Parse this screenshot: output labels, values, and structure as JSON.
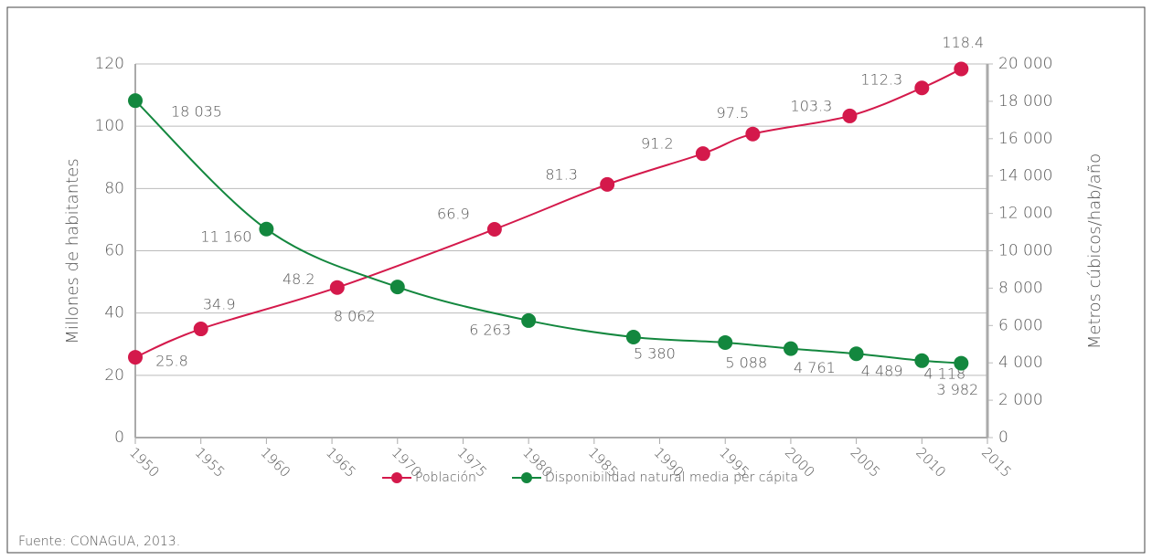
{
  "chart_data": {
    "type": "line",
    "x": [
      1950,
      1955,
      1965.4,
      1977.4,
      1986,
      1993.3,
      1997.1,
      2004.5,
      2010,
      2013
    ],
    "xlim": [
      1950,
      2015
    ],
    "xticks": [
      1950,
      1955,
      1960,
      1965,
      1970,
      1975,
      1980,
      1985,
      1990,
      1995,
      2000,
      2005,
      2010,
      2015
    ],
    "ylim": [
      0,
      120
    ],
    "yticks": [
      0,
      20,
      40,
      60,
      80,
      100,
      120
    ],
    "y2lim": [
      0,
      20000
    ],
    "y2ticks": [
      0,
      {
        "value": 2000,
        "label": "2 000"
      },
      {
        "value": 4000,
        "label": "4 000"
      },
      {
        "value": 6000,
        "label": "6 000"
      },
      {
        "value": 8000,
        "label": "8 000"
      },
      {
        "value": 10000,
        "label": "10 000"
      },
      {
        "value": 12000,
        "label": "12 000"
      },
      {
        "value": 14000,
        "label": "14 000"
      },
      {
        "value": 16000,
        "label": "16 000"
      },
      {
        "value": 18000,
        "label": "18 000"
      },
      {
        "value": 20000,
        "label": "20 000"
      }
    ],
    "ylabel": "Millones de habitantes",
    "y2label": "Metros cúbicos/hab/año",
    "grid": true,
    "legend": "bottom",
    "series": [
      {
        "name": "Población",
        "color": "#d4194b",
        "axis": "y",
        "x": [
          1950,
          1955,
          1965.4,
          1977.4,
          1986,
          1993.3,
          1997.1,
          2004.5,
          2010,
          2013
        ],
        "values": [
          25.8,
          34.9,
          48.2,
          66.9,
          81.3,
          91.2,
          97.5,
          103.3,
          112.3,
          118.4
        ]
      },
      {
        "name": "Disponibilidad natural media per cápita",
        "color": "#13873e",
        "axis": "y2",
        "x": [
          1950,
          1960,
          1970,
          1980,
          1988,
          1995,
          2000,
          2005,
          2010,
          2013
        ],
        "values": [
          18035,
          11160,
          8062,
          6263,
          5380,
          5088,
          4761,
          4489,
          4118,
          3982
        ],
        "value_labels": [
          "18 035",
          "11 160",
          "8 062",
          "6 263",
          "5 380",
          "5 088",
          "4 761",
          "4 489",
          "4 118",
          "3 982"
        ]
      }
    ],
    "source": "Fuente: CONAGUA, 2013."
  }
}
